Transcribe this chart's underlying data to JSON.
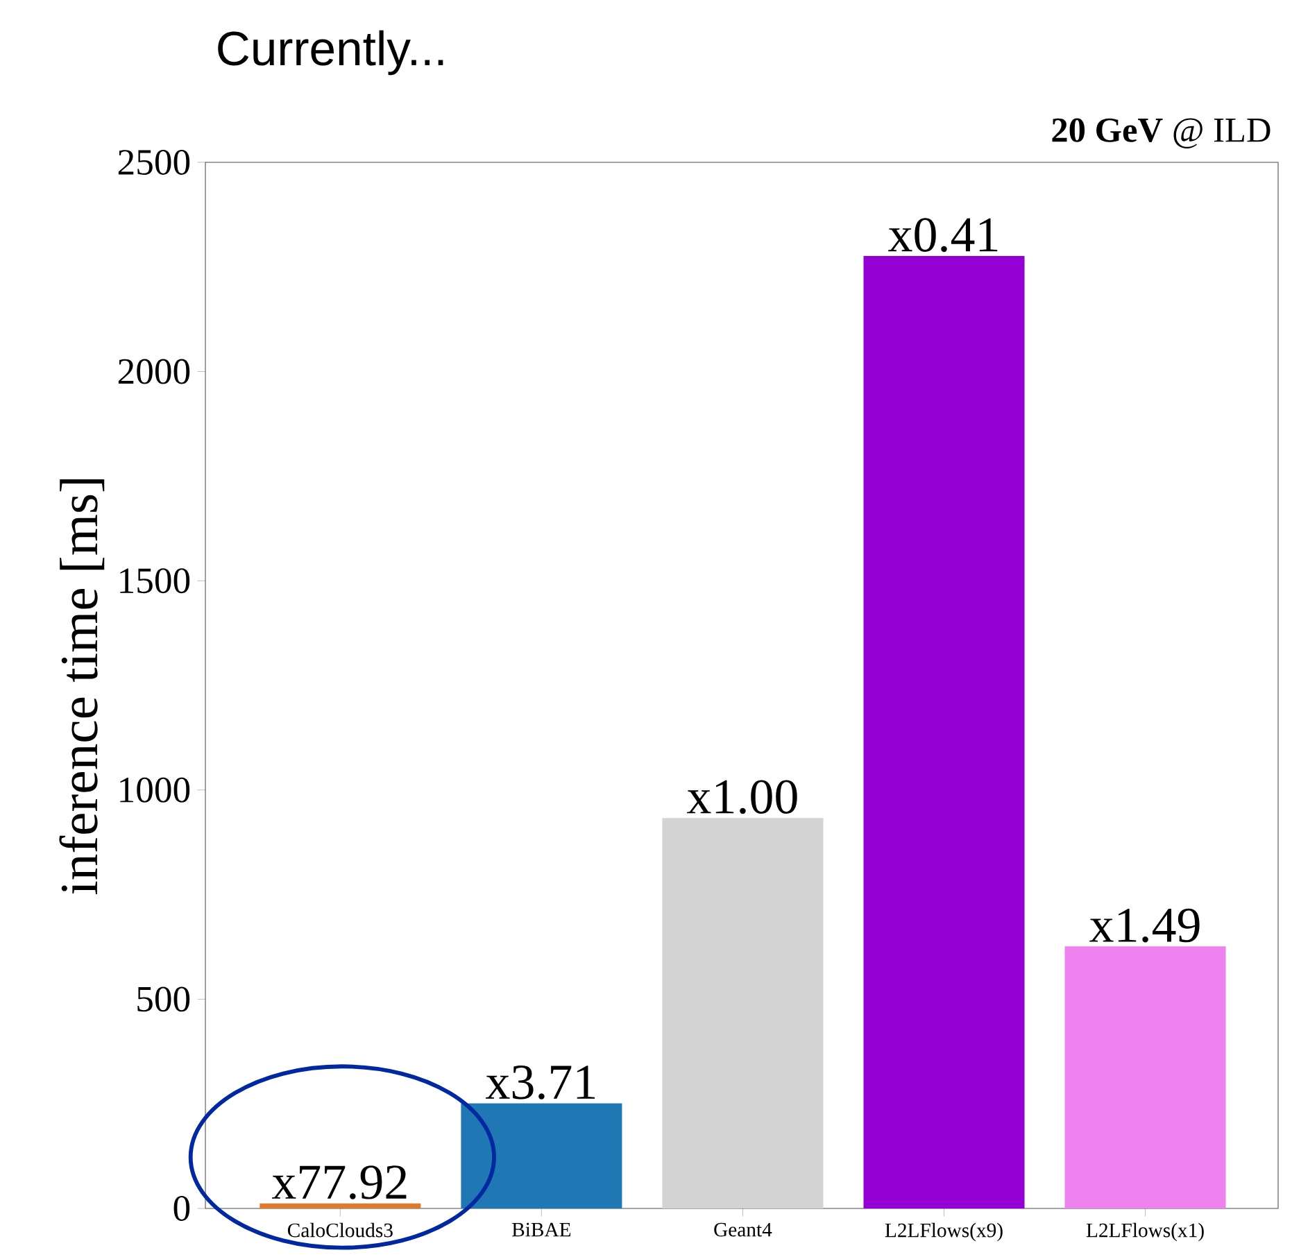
{
  "chart_data": {
    "type": "bar",
    "title": "**20 GeV** @ ILD",
    "ylabel": "inference time [ms]",
    "annotations": [
      "Currently..."
    ],
    "categories": [
      "CaloClouds3",
      "BiBAE",
      "Geant4",
      "L2LFlows(x9)",
      "L2LFlows(x1)"
    ],
    "values": [
      12,
      251,
      933,
      2276,
      626
    ],
    "colors": [
      "#dd7a2c",
      "#1f77b4",
      "#d3d3d3",
      "#9400d3",
      "#ee82ee"
    ],
    "value_labels": [
      "x77.92",
      "x3.71",
      "x1.00",
      "x0.41",
      "x1.49"
    ],
    "ylim": [
      0,
      2500
    ],
    "yticks": [
      0,
      500,
      1000,
      1500,
      2000,
      2500
    ]
  }
}
